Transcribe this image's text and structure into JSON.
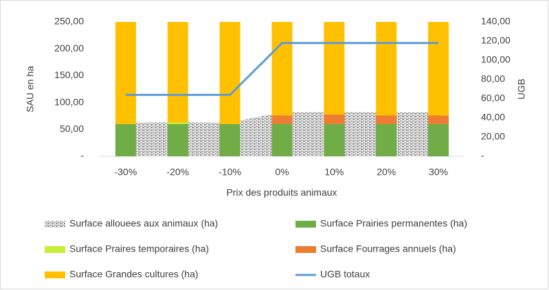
{
  "chart_data": {
    "type": "combo",
    "categories": [
      "-30%",
      "-20%",
      "-10%",
      "0%",
      "10%",
      "20%",
      "30%"
    ],
    "x_label": "Prix des produits animaux",
    "y_label": "SAU en ha",
    "y2_label": "UGB",
    "ylim": [
      0,
      250
    ],
    "yticks": [
      {
        "value": 0,
        "label": "-"
      },
      {
        "value": 50,
        "label": "50,00"
      },
      {
        "value": 100,
        "label": "100,00"
      },
      {
        "value": 150,
        "label": "150,00"
      },
      {
        "value": 200,
        "label": "200,00"
      },
      {
        "value": 250,
        "label": "250,00"
      }
    ],
    "y2lim": [
      0,
      140
    ],
    "y2ticks": [
      {
        "value": 0,
        "label": "-"
      },
      {
        "value": 20,
        "label": "20,00"
      },
      {
        "value": 40,
        "label": "40,00"
      },
      {
        "value": 60,
        "label": "60,00"
      },
      {
        "value": 80,
        "label": "80,00"
      },
      {
        "value": 100,
        "label": "100,00"
      },
      {
        "value": 120,
        "label": "120,00"
      },
      {
        "value": 140,
        "label": "140,00"
      }
    ],
    "series": [
      {
        "name": "Surface allouees aux animaux (ha)",
        "type": "area",
        "color": "#595959",
        "values": [
          63,
          64,
          63,
          82,
          83,
          82,
          82
        ]
      },
      {
        "name": "Surface Prairies permanentes (ha)",
        "type": "bar",
        "color": "#70ad47",
        "values": [
          60,
          60,
          60,
          60,
          60,
          60,
          60
        ]
      },
      {
        "name": "Surface Praires temporaires (ha)",
        "type": "bar",
        "color": "#c6ef3c",
        "values": [
          0,
          3,
          0,
          0,
          0,
          0,
          0
        ]
      },
      {
        "name": "Surface Fourrages annuels (ha)",
        "type": "bar",
        "color": "#ed7d31",
        "values": [
          0,
          0,
          0,
          16,
          18,
          16,
          16
        ]
      },
      {
        "name": "Surface Grandes cultures (ha)",
        "type": "bar",
        "color": "#ffc000",
        "values": [
          190,
          187,
          190,
          174,
          172,
          174,
          174
        ]
      },
      {
        "name": "UGB totaux",
        "type": "line",
        "axis": "y2",
        "color": "#5b9bd5",
        "values": [
          64,
          64,
          64,
          118,
          118,
          118,
          118
        ]
      }
    ]
  }
}
